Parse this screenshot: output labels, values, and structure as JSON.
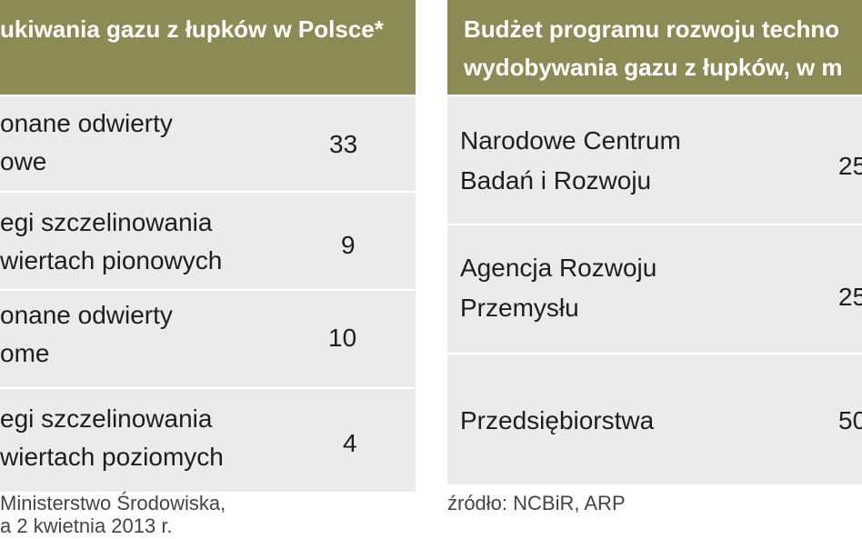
{
  "left_table": {
    "title": "ukiwania gazu z łupków w Polsce*",
    "rows": [
      {
        "label_line1": "onane odwierty",
        "label_line2": "owe",
        "value": "33"
      },
      {
        "label_line1": "egi szczelinowania",
        "label_line2": "wiertach pionowych",
        "value": "9"
      },
      {
        "label_line1": "onane odwierty",
        "label_line2": "ome",
        "value": "10"
      },
      {
        "label_line1": "egi szczelinowania",
        "label_line2": "wiertach poziomych",
        "value": "4"
      }
    ],
    "source_line1": "Ministerstwo Środowiska,",
    "source_line2": "a 2 kwietnia 2013 r."
  },
  "right_table": {
    "title_line1": "Budżet programu rozwoju techno",
    "title_line2": "wydobywania gazu z łupków, w m",
    "rows": [
      {
        "label_line1": "Narodowe Centrum",
        "label_line2": "Badań i Rozwoju",
        "value": "25"
      },
      {
        "label_line1": "Agencja Rozwoju",
        "label_line2": "Przemysłu",
        "value": "25"
      },
      {
        "label_line1": "Przedsiębiorstwa",
        "label_line2": "",
        "value": "50"
      }
    ],
    "source": "źródło: NCBiR, ARP"
  }
}
